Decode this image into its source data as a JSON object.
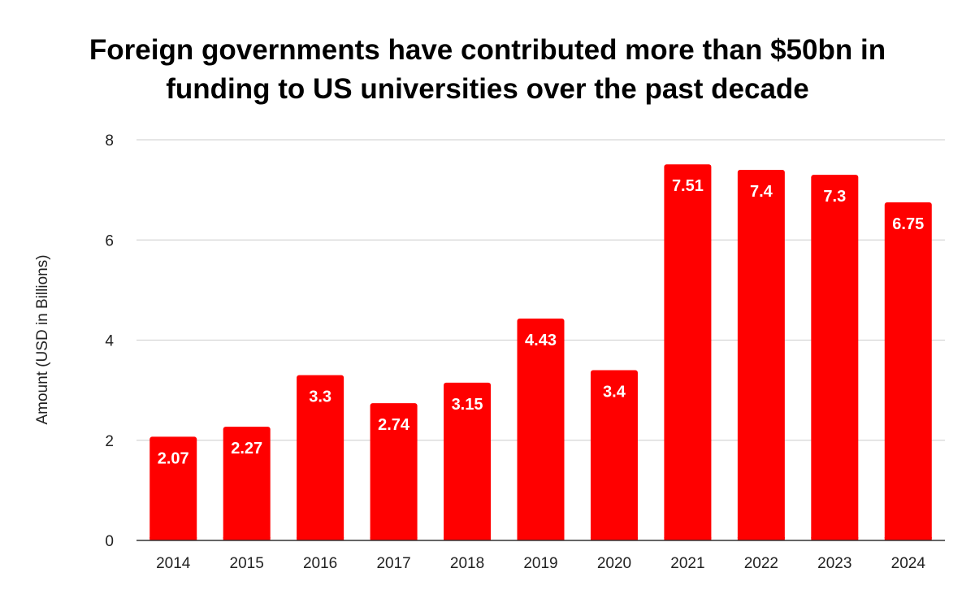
{
  "chart_data": {
    "type": "bar",
    "title": [
      "Foreign governments have contributed more than $50bn in",
      "funding to US universities over the past decade"
    ],
    "xlabel": "",
    "ylabel": "Amount (USD in Billions)",
    "categories": [
      "2014",
      "2015",
      "2016",
      "2017",
      "2018",
      "2019",
      "2020",
      "2021",
      "2022",
      "2023",
      "2024"
    ],
    "series": [
      {
        "values": [
          2.07,
          2.27,
          3.3,
          2.74,
          3.15,
          4.43,
          3.4,
          7.51,
          7.4,
          7.3,
          6.75
        ]
      }
    ],
    "data_labels": [
      "2.07",
      "2.27",
      "3.3",
      "2.74",
      "3.15",
      "4.43",
      "3.4",
      "7.51",
      "7.4",
      "7.3",
      "6.75"
    ],
    "ylim": [
      0,
      8
    ],
    "yticks": [
      0,
      2,
      4,
      6,
      8
    ],
    "grid": true,
    "legend": "none",
    "colors": {
      "bar": "#ff0000",
      "grid": "#cccccc",
      "axis": "#333333"
    }
  }
}
